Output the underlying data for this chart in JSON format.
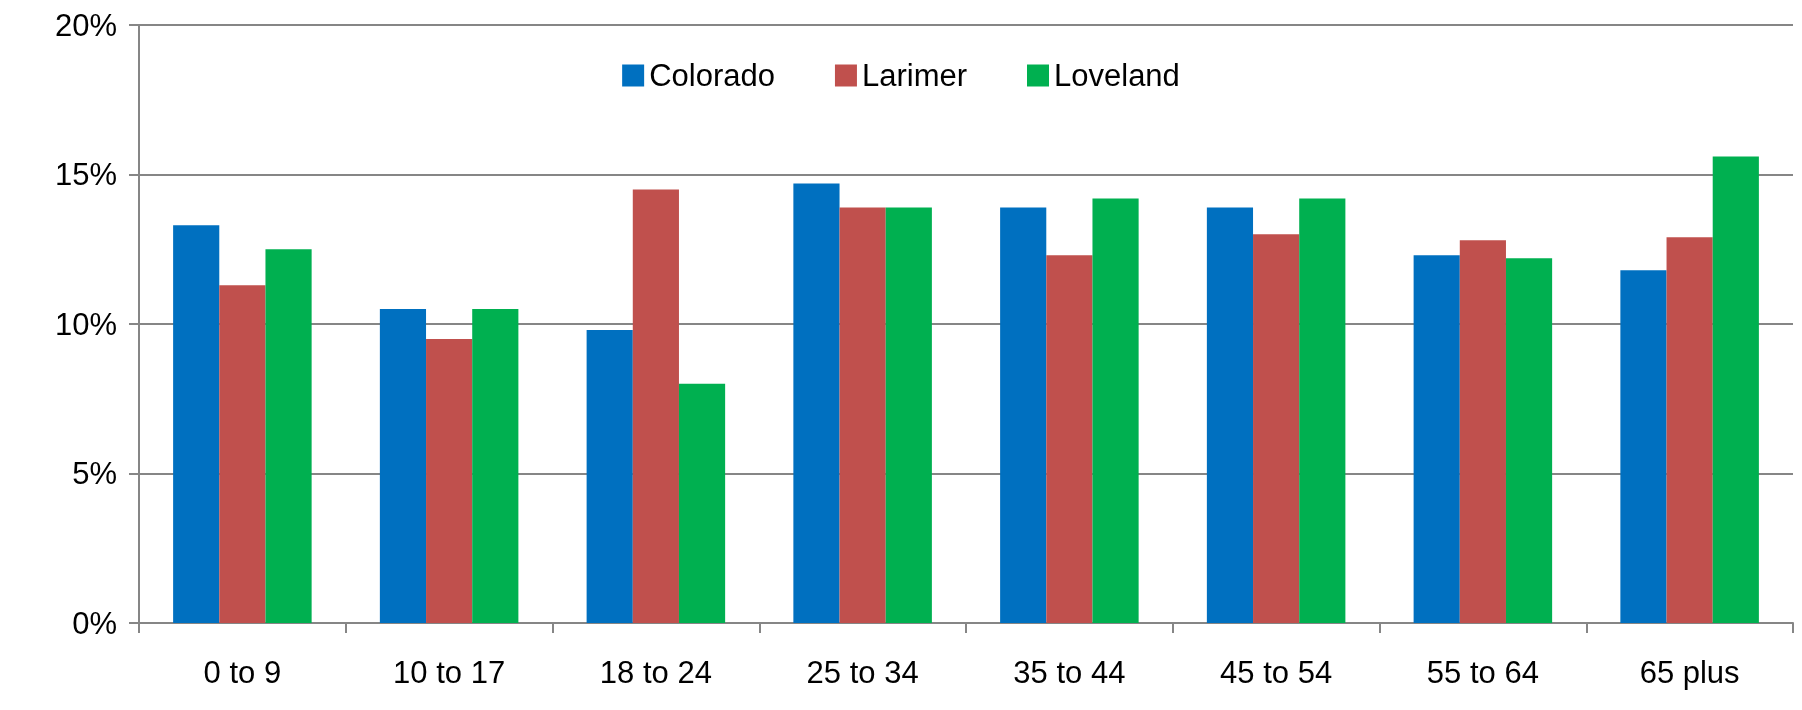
{
  "chart_data": {
    "type": "bar",
    "categories": [
      "0 to 9",
      "10 to 17",
      "18 to 24",
      "25 to 34",
      "35 to 44",
      "45 to 54",
      "55 to 64",
      "65 plus"
    ],
    "series": [
      {
        "name": "Colorado",
        "color": "#0070c0",
        "values": [
          13.3,
          10.5,
          9.8,
          14.7,
          13.9,
          13.9,
          12.3,
          11.8
        ]
      },
      {
        "name": "Larimer",
        "color": "#c0504d",
        "values": [
          11.3,
          9.5,
          14.5,
          13.9,
          12.3,
          13.0,
          12.8,
          12.9
        ]
      },
      {
        "name": "Loveland",
        "color": "#00b050",
        "values": [
          12.5,
          10.5,
          8.0,
          13.9,
          14.2,
          14.2,
          12.2,
          15.6
        ]
      }
    ],
    "ylim": [
      0,
      20
    ],
    "yticks": [
      {
        "value": 0,
        "label": "0%"
      },
      {
        "value": 5,
        "label": "5%"
      },
      {
        "value": 10,
        "label": "10%"
      },
      {
        "value": 15,
        "label": "15%"
      },
      {
        "value": 20,
        "label": "20%"
      }
    ],
    "grid": "y",
    "legend": "top"
  }
}
